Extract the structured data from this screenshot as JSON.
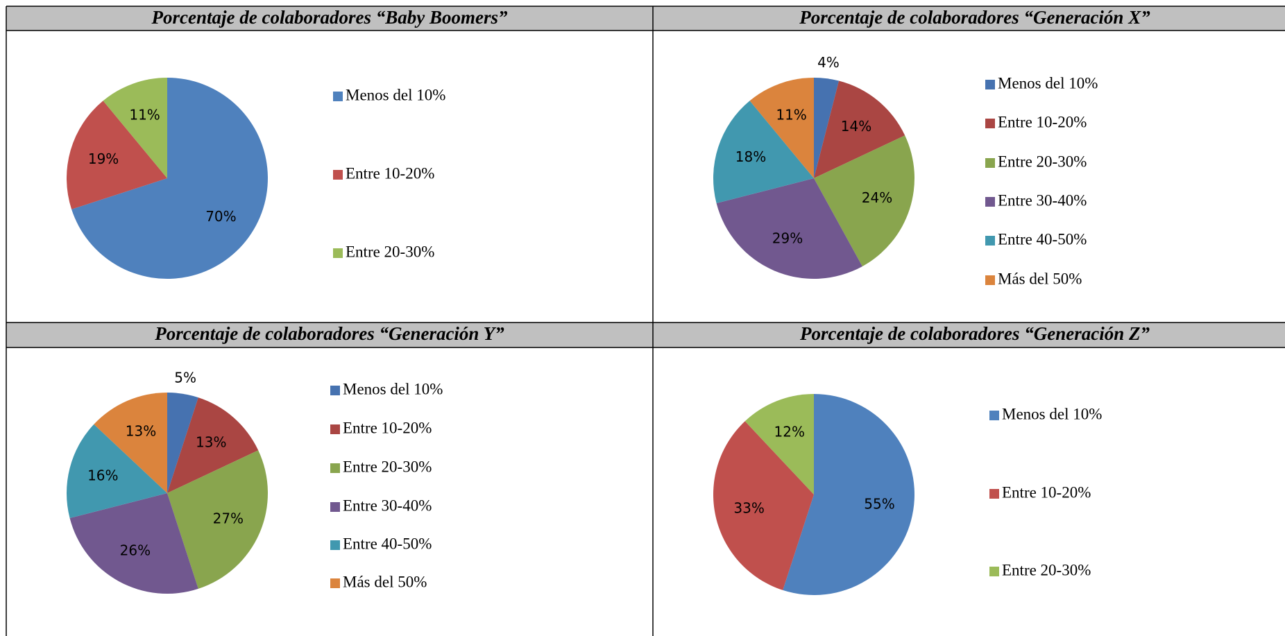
{
  "chart_data": [
    {
      "type": "pie",
      "title": "Porcentaje de colaboradores “Baby Boomers”",
      "categories": [
        "Menos del 10%",
        "Entre 10-20%",
        "Entre 20-30%"
      ],
      "values": [
        70,
        19,
        11
      ],
      "value_labels": [
        "70%",
        "19%",
        "11%"
      ],
      "colors": [
        "#4f81bd",
        "#c0504d",
        "#9bbb59"
      ]
    },
    {
      "type": "pie",
      "title": "Porcentaje de colaboradores “Generación X”",
      "categories": [
        "Menos del 10%",
        "Entre 10-20%",
        "Entre 20-30%",
        "Entre 30-40%",
        "Entre 40-50%",
        "Más del 50%"
      ],
      "values": [
        4,
        14,
        24,
        29,
        18,
        11
      ],
      "value_labels": [
        "4%",
        "14%",
        "24%",
        "29%",
        "18%",
        "11%"
      ],
      "colors": [
        "#4672b0",
        "#aa4643",
        "#89a54e",
        "#71588f",
        "#4198af",
        "#db843d"
      ]
    },
    {
      "type": "pie",
      "title": "Porcentaje de colaboradores “Generación Y”",
      "categories": [
        "Menos del 10%",
        "Entre 10-20%",
        "Entre 20-30%",
        "Entre 30-40%",
        "Entre 40-50%",
        "Más del 50%"
      ],
      "values": [
        5,
        13,
        27,
        26,
        16,
        13
      ],
      "value_labels": [
        "5%",
        "13%",
        "27%",
        "26%",
        "16%",
        "13%"
      ],
      "colors": [
        "#4672b0",
        "#aa4643",
        "#89a54e",
        "#71588f",
        "#4198af",
        "#db843d"
      ]
    },
    {
      "type": "pie",
      "title": "Porcentaje de colaboradores “Generación Z”",
      "categories": [
        "Menos del 10%",
        "Entre 10-20%",
        "Entre 20-30%"
      ],
      "values": [
        55,
        33,
        12
      ],
      "value_labels": [
        "55%",
        "33%",
        "12%"
      ],
      "colors": [
        "#4f81bd",
        "#c0504d",
        "#9bbb59"
      ]
    }
  ]
}
